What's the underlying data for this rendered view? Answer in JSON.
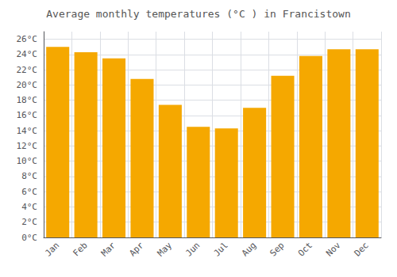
{
  "chart_data": {
    "type": "bar",
    "title": "Average monthly temperatures (°C ) in Francistown",
    "categories": [
      "Jan",
      "Feb",
      "Mar",
      "Apr",
      "May",
      "Jun",
      "Jul",
      "Aug",
      "Sep",
      "Oct",
      "Nov",
      "Dec"
    ],
    "values": [
      25.0,
      24.3,
      23.5,
      20.8,
      17.4,
      14.5,
      14.3,
      17.0,
      21.2,
      23.8,
      24.7,
      24.7
    ],
    "color": "#F5A800",
    "ylim": [
      0,
      27
    ],
    "yticks": [
      {
        "value": 0,
        "label": "0°C"
      },
      {
        "value": 2,
        "label": "2°C"
      },
      {
        "value": 4,
        "label": "4°C"
      },
      {
        "value": 6,
        "label": "6°C"
      },
      {
        "value": 8,
        "label": "8°C"
      },
      {
        "value": 10,
        "label": "10°C"
      },
      {
        "value": 12,
        "label": "12°C"
      },
      {
        "value": 14,
        "label": "14°C"
      },
      {
        "value": 16,
        "label": "16°C"
      },
      {
        "value": 18,
        "label": "18°C"
      },
      {
        "value": 20,
        "label": "20°C"
      },
      {
        "value": 22,
        "label": "22°C"
      },
      {
        "value": 24,
        "label": "24°C"
      },
      {
        "value": 26,
        "label": "26°C"
      }
    ],
    "grid": true
  }
}
